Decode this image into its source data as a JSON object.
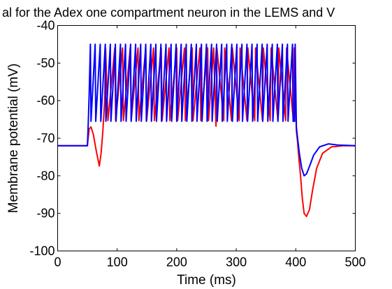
{
  "chart_data": {
    "type": "line",
    "title": "al for the Adex one compartment neuron in the LEMS and V",
    "xlabel": "Time (ms)",
    "ylabel": "Membrane potential (mV)",
    "xlim": [
      0,
      500
    ],
    "ylim": [
      -100,
      -40
    ],
    "x_ticks": [
      "0",
      "100",
      "200",
      "300",
      "400",
      "500"
    ],
    "y_ticks": [
      "-40",
      "-50",
      "-60",
      "-70",
      "-80",
      "-90",
      "-100"
    ],
    "grid": false,
    "legend": "none",
    "series": [
      {
        "color": "#ff0000",
        "x": [
          0,
          50,
          51,
          53,
          56,
          60,
          65,
          70,
          73,
          76,
          79,
          80.5,
          84.5,
          96,
          97.5,
          109,
          110.5,
          122,
          123.5,
          135,
          136.5,
          148,
          149.5,
          161,
          162.5,
          174,
          175.5,
          187,
          188.5,
          200,
          201.5,
          213,
          214.5,
          226,
          227.5,
          239,
          240.5,
          252,
          253.5,
          262,
          266,
          267.5,
          279,
          280.5,
          292,
          293.5,
          305,
          306.5,
          318,
          319.5,
          331,
          332.5,
          344,
          345.5,
          357,
          358.5,
          370,
          371.5,
          383,
          384.5,
          396,
          397.5,
          401,
          403,
          405,
          408,
          411,
          414,
          418,
          423,
          428,
          435,
          445,
          460,
          480,
          500
        ],
        "y": [
          -72,
          -72,
          -70.3,
          -67.5,
          -67,
          -69,
          -73.5,
          -77.4,
          -74,
          -68,
          -60,
          -46,
          -65.3,
          -46,
          -65.3,
          -46,
          -65.3,
          -46,
          -65.3,
          -46,
          -65.3,
          -46,
          -65.3,
          -46,
          -65.3,
          -46,
          -65.3,
          -46,
          -65.3,
          -46,
          -65.3,
          -46,
          -65.3,
          -46,
          -65.3,
          -46,
          -65.3,
          -46,
          -65.3,
          -46,
          -66.8,
          -46,
          -65.3,
          -46,
          -65.3,
          -46,
          -65.3,
          -46,
          -65.3,
          -46,
          -65.3,
          -46,
          -65.3,
          -46,
          -65.3,
          -46,
          -65.3,
          -46,
          -65.3,
          -46,
          -65.3,
          -46,
          -68,
          -71,
          -75,
          -80,
          -86,
          -90,
          -90.8,
          -89,
          -84,
          -78,
          -74,
          -72.3,
          -72,
          -72
        ]
      },
      {
        "color": "#0000ff",
        "x": [
          0,
          50,
          51,
          53,
          55,
          56,
          63,
          64,
          71.5,
          72.5,
          80,
          81,
          88.5,
          89.5,
          97,
          98,
          105.5,
          106.5,
          114,
          115,
          122.5,
          123.5,
          131,
          132,
          139.5,
          140.5,
          148,
          149,
          156.5,
          157.5,
          165,
          166,
          173.5,
          174.5,
          182,
          183,
          190.5,
          191.5,
          199,
          200,
          207.5,
          208.5,
          216,
          217,
          224.5,
          225.5,
          233,
          234,
          241.5,
          242.5,
          250,
          251,
          258.5,
          259.5,
          267,
          268,
          275.5,
          276.5,
          284,
          285,
          292.5,
          293.5,
          301,
          302,
          309.5,
          310.5,
          318,
          319,
          326.5,
          327.5,
          335,
          336,
          343.5,
          344.5,
          352,
          353,
          360.5,
          361.5,
          369,
          370,
          377.5,
          378.5,
          386,
          387,
          394.5,
          395.5,
          398,
          399,
          401,
          403,
          406,
          410,
          414,
          418,
          423,
          430,
          440,
          455,
          470,
          500
        ],
        "y": [
          -72,
          -72,
          -68,
          -58,
          -45,
          -65.5,
          -45,
          -65.5,
          -45,
          -65.5,
          -45,
          -65.5,
          -45,
          -65.5,
          -45,
          -65.5,
          -45,
          -65.5,
          -45,
          -65.5,
          -45,
          -65.5,
          -45,
          -65.5,
          -45,
          -65.5,
          -45,
          -65.5,
          -45,
          -65.5,
          -45,
          -65.5,
          -45,
          -65.5,
          -45,
          -65.5,
          -45,
          -65.5,
          -45,
          -65.5,
          -45,
          -65.5,
          -45,
          -65.5,
          -45,
          -65.5,
          -45,
          -65.5,
          -45,
          -65.5,
          -45,
          -65.5,
          -45,
          -65.5,
          -45,
          -65.5,
          -45,
          -65.5,
          -45,
          -65.5,
          -45,
          -65.5,
          -45,
          -65.5,
          -45,
          -65.5,
          -45,
          -65.5,
          -45,
          -65.5,
          -45,
          -65.5,
          -45,
          -65.5,
          -45,
          -65.5,
          -45,
          -65.5,
          -45,
          -65.5,
          -45,
          -65.5,
          -45,
          -65.5,
          -45,
          -65.5,
          -65.5,
          -45,
          -67,
          -70,
          -74,
          -78,
          -80,
          -79.5,
          -77.5,
          -74.5,
          -72.3,
          -71.5,
          -71.8,
          -72
        ]
      }
    ]
  }
}
